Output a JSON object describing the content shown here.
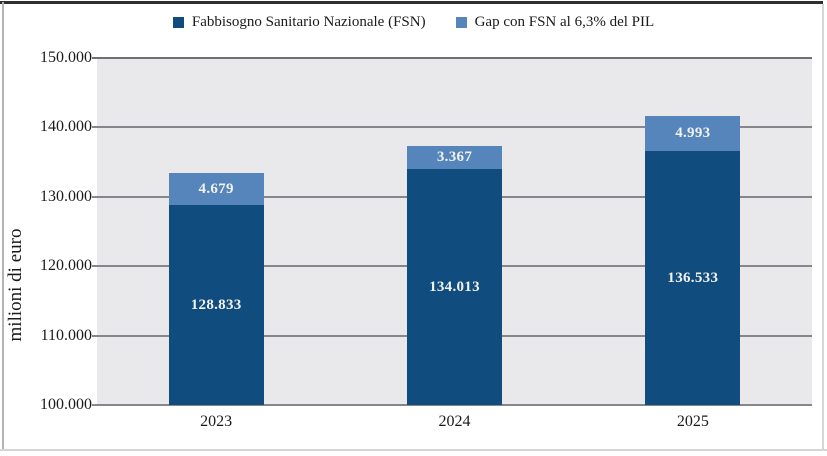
{
  "colors": {
    "fsn_blue": "#114C7E",
    "gap_blue": "#5585BB",
    "plot_background": "#e9e9ec",
    "gridline": "#85878c",
    "bar_label_text": "#f2f2ee"
  },
  "legend": {
    "items": [
      {
        "label": "Fabbisogno Sanitario Nazionale (FSN)",
        "color": "#114C7E"
      },
      {
        "label": "Gap con FSN al 6,3% del PIL",
        "color": "#5585BB"
      }
    ]
  },
  "chart_data": {
    "type": "bar",
    "stacked": true,
    "categories": [
      "2023",
      "2024",
      "2025"
    ],
    "series": [
      {
        "name": "Fabbisogno Sanitario Nazionale (FSN)",
        "color": "#114C7E",
        "values": [
          128833,
          134013,
          136533
        ],
        "labels": [
          "128.833",
          "134.013",
          "136.533"
        ]
      },
      {
        "name": "Gap con FSN al 6,3% del PIL",
        "color": "#5585BB",
        "values": [
          4679,
          3367,
          4993
        ],
        "labels": [
          "4.679",
          "3.367",
          "4.993"
        ]
      }
    ],
    "title": "",
    "xlabel": "",
    "ylabel": "milioni di euro",
    "ylim": [
      100000,
      150000
    ],
    "ytick_step": 10000,
    "yticks": [
      "150.000",
      "140.000",
      "130.000",
      "120.000",
      "110.000",
      "100.000"
    ],
    "grid": true,
    "legend_position": "top"
  }
}
